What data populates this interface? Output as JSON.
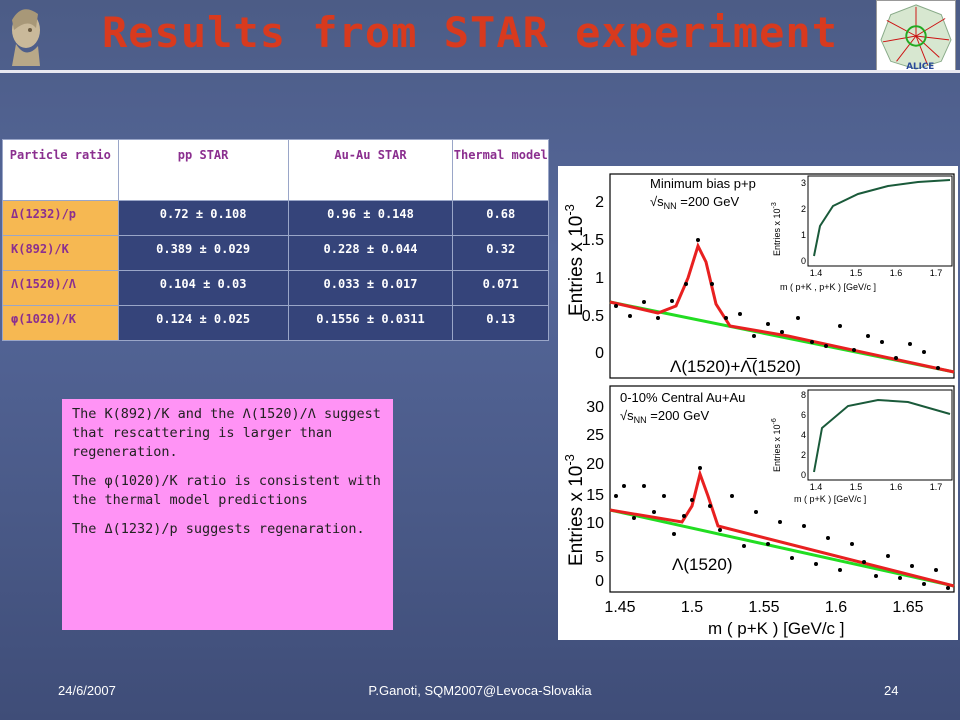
{
  "slide": {
    "title": "Results from STAR experiment"
  },
  "table": {
    "headers": [
      "Particle ratio",
      "pp STAR",
      "Au-Au STAR",
      "Thermal model"
    ],
    "rows": [
      {
        "ratio": "Δ(1232)/p",
        "pp": "0.72 ± 0.108",
        "auau": "0.96 ± 0.148",
        "thermal": "0.68"
      },
      {
        "ratio": "K(892)/K",
        "pp": "0.389 ± 0.029",
        "auau": "0.228 ± 0.044",
        "thermal": "0.32"
      },
      {
        "ratio": "Λ(1520)/Λ",
        "pp": "0.104 ± 0.03",
        "auau": "0.033 ± 0.017",
        "thermal": "0.071"
      },
      {
        "ratio": "φ(1020)/K",
        "pp": "0.124 ± 0.025",
        "auau": "0.1556 ± 0.0311",
        "thermal": "0.13"
      }
    ]
  },
  "note": {
    "p1": "The K(892)/K and the Λ(1520)/Λ suggest that rescattering is larger than regeneration.",
    "p2": "The φ(1020)/K ratio is consistent with the thermal model predictions",
    "p3": "The Δ(1232)/p  suggests regenaration."
  },
  "plot": {
    "top_panel": {
      "label": "Minimum bias p+p",
      "energy": "√s",
      "energy_sub": "NN",
      "energy_val": " =200 GeV",
      "ylabel": "Entries  x 10",
      "ylabel_exp": "-3",
      "yticks": [
        "0",
        "0.5",
        "1",
        "1.5",
        "2"
      ],
      "peak_label": "Λ(1520)+Λ̅(1520)",
      "inset_ylabel": "Entries  x 10",
      "inset_ylabel_exp": "-3",
      "inset_yticks": [
        "0",
        "1",
        "2",
        "3"
      ],
      "inset_xticks": [
        "1.4",
        "1.5",
        "1.6",
        "1.7"
      ],
      "inset_xlabel": "m  ( p+K , p+K ) [GeV/c ]"
    },
    "bottom_panel": {
      "label": "0-10% Central Au+Au",
      "energy": "√s",
      "energy_sub": "NN",
      "energy_val": " =200 GeV",
      "ylabel": "Entries  x 10",
      "ylabel_exp": "-3",
      "yticks": [
        "0",
        "5",
        "10",
        "15",
        "20",
        "25",
        "30"
      ],
      "peak_label": "Λ(1520)",
      "inset_ylabel": "Entries  x 10",
      "inset_ylabel_exp": "-6",
      "inset_yticks": [
        "0",
        "2",
        "4",
        "6",
        "8"
      ],
      "inset_xticks": [
        "1.4",
        "1.5",
        "1.6",
        "1.7"
      ],
      "inset_xlabel": "m  ( p+K ) [GeV/c ]"
    },
    "xticks": [
      "1.45",
      "1.5",
      "1.55",
      "1.6",
      "1.65"
    ],
    "xlabel": "m  ( p+K ) [GeV/c ]",
    "colors": {
      "fit": "#e82020",
      "background": "#22dd22",
      "inset_curve": "#1a5a3a"
    }
  },
  "footer": {
    "date": "24/6/2007",
    "author": "P.Ganoti, SQM2007@Levoca-Slovakia",
    "page": "24"
  },
  "icons": [
    "athena-logo-icon",
    "alice-logo-icon"
  ]
}
